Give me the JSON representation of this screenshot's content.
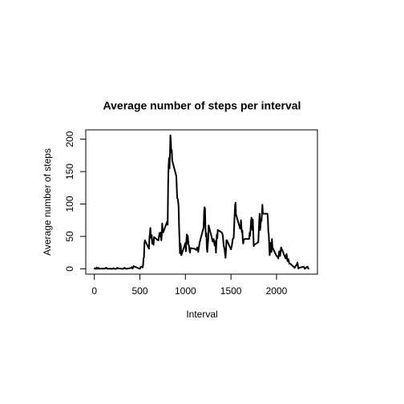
{
  "chart_data": {
    "type": "line",
    "title": "Average number of steps per interval",
    "x_label": "Interval",
    "y_label": "Average number of steps",
    "x": [
      0,
      5,
      10,
      15,
      20,
      25,
      30,
      40,
      45,
      50,
      100,
      110,
      125,
      130,
      140,
      150,
      200,
      210,
      220,
      230,
      240,
      250,
      255,
      300,
      320,
      330,
      340,
      350,
      400,
      410,
      420,
      430,
      440,
      450,
      500,
      510,
      520,
      530,
      535,
      540,
      545,
      550,
      555,
      600,
      605,
      610,
      615,
      620,
      625,
      630,
      635,
      640,
      645,
      650,
      655,
      700,
      705,
      710,
      715,
      720,
      725,
      730,
      735,
      740,
      745,
      750,
      755,
      800,
      805,
      810,
      815,
      820,
      825,
      830,
      835,
      840,
      845,
      850,
      855,
      900,
      905,
      910,
      915,
      920,
      925,
      930,
      935,
      940,
      945,
      950,
      955,
      1000,
      1005,
      1010,
      1015,
      1020,
      1025,
      1030,
      1035,
      1040,
      1045,
      1050,
      1055,
      1100,
      1110,
      1120,
      1130,
      1140,
      1150,
      1155,
      1200,
      1205,
      1210,
      1215,
      1220,
      1225,
      1230,
      1235,
      1240,
      1245,
      1250,
      1255,
      1300,
      1310,
      1320,
      1330,
      1335,
      1340,
      1345,
      1350,
      1355,
      1400,
      1410,
      1420,
      1430,
      1440,
      1445,
      1450,
      1455,
      1500,
      1510,
      1520,
      1530,
      1535,
      1540,
      1545,
      1550,
      1555,
      1600,
      1605,
      1610,
      1615,
      1620,
      1625,
      1630,
      1635,
      1640,
      1650,
      1700,
      1705,
      1710,
      1715,
      1720,
      1725,
      1730,
      1735,
      1740,
      1745,
      1750,
      1755,
      1800,
      1805,
      1810,
      1815,
      1820,
      1825,
      1830,
      1835,
      1840,
      1845,
      1850,
      1855,
      1900,
      1905,
      1910,
      1915,
      1920,
      1925,
      1930,
      1935,
      1940,
      1945,
      1950,
      1955,
      2000,
      2010,
      2020,
      2030,
      2040,
      2050,
      2100,
      2110,
      2120,
      2130,
      2140,
      2150,
      2200,
      2210,
      2220,
      2230,
      2240,
      2250,
      2300,
      2310,
      2320,
      2330,
      2340,
      2350,
      2355
    ],
    "series": [
      {
        "color": "#000000",
        "values": [
          1.7,
          0.3,
          0.1,
          0.2,
          0.1,
          2.1,
          0.5,
          0,
          1.5,
          0.3,
          0.3,
          0.2,
          1.1,
          1.8,
          0.2,
          0.3,
          0,
          1.1,
          0,
          0,
          0,
          1.5,
          0.9,
          0,
          0.2,
          1.6,
          0.5,
          0,
          1.2,
          2.6,
          0.3,
          4.1,
          3.5,
          3.1,
          0,
          3,
          3.2,
          2.1,
          6,
          16,
          18,
          39,
          44,
          31,
          49,
          54,
          63,
          50,
          47,
          52,
          39,
          44,
          44,
          37,
          49,
          44,
          44,
          51,
          55,
          50,
          56,
          56,
          44,
          52,
          70,
          58,
          56,
          73,
          68,
          129,
          158,
          171,
          155,
          177,
          206,
          196,
          180,
          183,
          167,
          143,
          124,
          109,
          108,
          104,
          96,
          66,
          45,
          24,
          39,
          35,
          21,
          40,
          27,
          42,
          53,
          39,
          51,
          44,
          37,
          35,
          28,
          25,
          32,
          31,
          30,
          29,
          33,
          26,
          35,
          40,
          64,
          88,
          95,
          93,
          63,
          50,
          55,
          32,
          26,
          37,
          45,
          67,
          42,
          46,
          36,
          43,
          25,
          40,
          53,
          47,
          60,
          56,
          52,
          36,
          30,
          17,
          26,
          44,
          44,
          30,
          36,
          46,
          48,
          65,
          83,
          98,
          102,
          84,
          62,
          64,
          75,
          63,
          56,
          59,
          43,
          39,
          45,
          46,
          46,
          56,
          51,
          61,
          73,
          79,
          68,
          60,
          76,
          57,
          35,
          37,
          41,
          58,
          74,
          85,
          60,
          68,
          77,
          74,
          85,
          99,
          86,
          85,
          85,
          78,
          58,
          53,
          36,
          21,
          27,
          40,
          30,
          26,
          46,
          33,
          20,
          19,
          16,
          27,
          20,
          33,
          16,
          23,
          12,
          15,
          8,
          8,
          1.6,
          4.6,
          5.6,
          9.8,
          0.3,
          1.6,
          3.3,
          0,
          0.9,
          2.6,
          3.3,
          0.2,
          1.1
        ]
      }
    ],
    "xlim": [
      -94.2,
      2449.2
    ],
    "xticks": [
      0,
      500,
      1000,
      1500,
      2000
    ],
    "ylim": [
      -8.2,
      214.4
    ],
    "yticks": [
      0,
      50,
      100,
      150,
      200
    ]
  }
}
